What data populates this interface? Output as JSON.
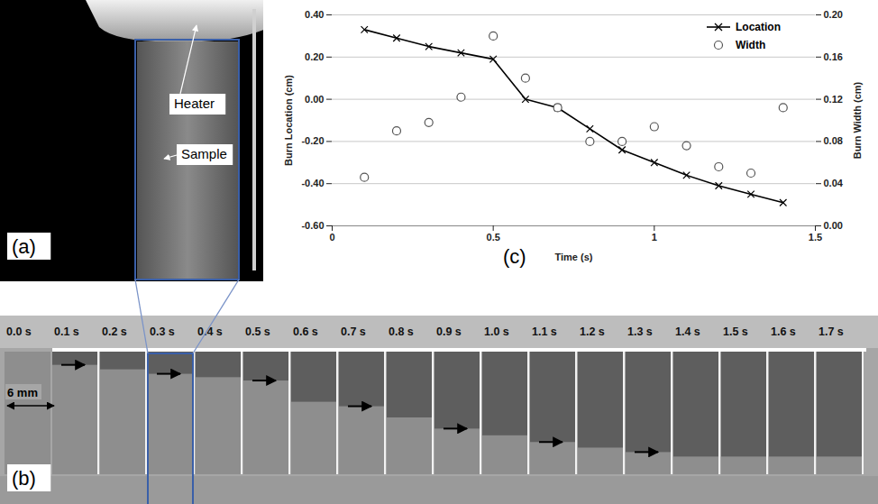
{
  "figure": {
    "panel_a": {
      "panel_label": "(a)",
      "annotations": [
        "Heater",
        "Sample"
      ]
    },
    "panel_b": {
      "panel_label": "(b)",
      "frames": [
        "0.0 s",
        "0.1 s",
        "0.2 s",
        "0.3 s",
        "0.4 s",
        "0.5 s",
        "0.6 s",
        "0.7 s",
        "0.8 s",
        "0.9 s",
        "1.0 s",
        "1.1 s",
        "1.2 s",
        "1.3 s",
        "1.4 s",
        "1.5 s",
        "1.6 s",
        "1.7 s"
      ],
      "scale_bar": "6 mm"
    }
  },
  "chart_data": {
    "type": "line",
    "panel_label": "(c)",
    "x_label": "Time (s)",
    "y_label": "Burn Location (cm)",
    "y2_label": "Burn Width (cm)",
    "x": [
      0.1,
      0.2,
      0.3,
      0.4,
      0.5,
      0.6,
      0.7,
      0.8,
      0.9,
      1.0,
      1.1,
      1.2,
      1.3,
      1.4
    ],
    "xlim": [
      0,
      1.5
    ],
    "xticks": [
      0,
      0.5,
      1,
      1.5
    ],
    "ylim": [
      -0.6,
      0.4
    ],
    "yticks": [
      {
        "value": -0.6,
        "label": "-0.60"
      },
      {
        "value": -0.4,
        "label": "-0.40"
      },
      {
        "value": -0.2,
        "label": "-0.20"
      },
      {
        "value": 0,
        "label": "0.00"
      },
      {
        "value": 0.2,
        "label": "0.20"
      },
      {
        "value": 0.4,
        "label": "0.40"
      }
    ],
    "y2lim": [
      0,
      0.2
    ],
    "y2ticks": [
      {
        "value": 0,
        "label": "0.00"
      },
      {
        "value": 0.04,
        "label": "0.04"
      },
      {
        "value": 0.08,
        "label": "0.08"
      },
      {
        "value": 0.12,
        "label": "0.12"
      },
      {
        "value": 0.16,
        "label": "0.16"
      },
      {
        "value": 0.2,
        "label": "0.20"
      }
    ],
    "grid": true,
    "legend": "top-right",
    "series": [
      {
        "name": "Location",
        "type": "line",
        "color": "#000000",
        "marker": "x",
        "line_style": "solid",
        "values": [
          0.33,
          0.29,
          0.25,
          0.22,
          0.19,
          0.0,
          -0.04,
          -0.14,
          -0.24,
          -0.3,
          -0.36,
          -0.41,
          -0.45,
          -0.49
        ]
      },
      {
        "name": "Width",
        "type": "scatter",
        "color": "#555555",
        "marker": "circle",
        "axis": "y2",
        "values": [
          0.046,
          0.09,
          0.098,
          0.122,
          0.18,
          0.14,
          0.112,
          0.08,
          0.08,
          0.094,
          0.076,
          0.056,
          0.05,
          0.112
        ]
      }
    ]
  }
}
